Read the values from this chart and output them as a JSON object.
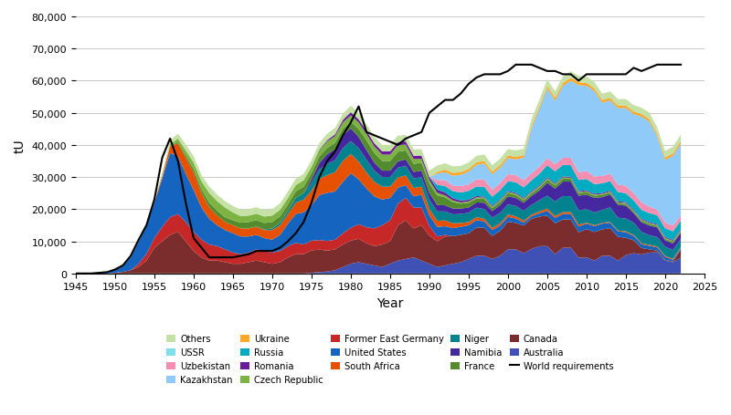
{
  "years": [
    1945,
    1946,
    1947,
    1948,
    1949,
    1950,
    1951,
    1952,
    1953,
    1954,
    1955,
    1956,
    1957,
    1958,
    1959,
    1960,
    1961,
    1962,
    1963,
    1964,
    1965,
    1966,
    1967,
    1968,
    1969,
    1970,
    1971,
    1972,
    1973,
    1974,
    1975,
    1976,
    1977,
    1978,
    1979,
    1980,
    1981,
    1982,
    1983,
    1984,
    1985,
    1986,
    1987,
    1988,
    1989,
    1990,
    1991,
    1992,
    1993,
    1994,
    1995,
    1996,
    1997,
    1998,
    1999,
    2000,
    2001,
    2002,
    2003,
    2004,
    2005,
    2006,
    2007,
    2008,
    2009,
    2010,
    2011,
    2012,
    2013,
    2014,
    2015,
    2016,
    2017,
    2018,
    2019,
    2020,
    2021,
    2022
  ],
  "series": {
    "Australia": [
      0,
      0,
      0,
      0,
      0,
      0,
      0,
      0,
      0,
      0,
      0,
      0,
      0,
      0,
      0,
      0,
      0,
      0,
      0,
      0,
      0,
      0,
      0,
      0,
      0,
      0,
      0,
      0,
      0,
      0,
      200,
      400,
      600,
      1000,
      2000,
      3000,
      3500,
      3000,
      2500,
      2000,
      3000,
      4000,
      4500,
      5000,
      4000,
      3000,
      2000,
      2500,
      3000,
      3500,
      4500,
      5500,
      5500,
      4500,
      5500,
      7500,
      7500,
      6300,
      7600,
      8500,
      8500,
      6000,
      8000,
      8000,
      4900,
      5000,
      4000,
      5500,
      5500,
      4000,
      5700,
      6300,
      5900,
      6500,
      6600,
      4000,
      3500,
      4900
    ],
    "Canada": [
      0,
      0,
      0,
      0,
      0,
      200,
      500,
      1000,
      2000,
      4000,
      8000,
      10000,
      12000,
      13000,
      10000,
      7000,
      5000,
      4000,
      4000,
      3500,
      3000,
      3000,
      3500,
      4000,
      3500,
      3000,
      3500,
      5000,
      6000,
      6000,
      7000,
      7000,
      6500,
      6500,
      7000,
      7200,
      7300,
      6400,
      6000,
      7000,
      7000,
      11000,
      12000,
      9000,
      11000,
      8800,
      8000,
      9000,
      8600,
      8500,
      8000,
      8800,
      8700,
      7200,
      7700,
      8600,
      8200,
      8600,
      9400,
      9200,
      9500,
      9600,
      8800,
      8800,
      7900,
      8800,
      8900,
      8200,
      8600,
      7400,
      5400,
      4000,
      2000,
      1000,
      500,
      200,
      200,
      2500
    ],
    "Former_East_Germany": [
      0,
      0,
      0,
      0,
      0,
      0,
      0,
      0,
      1000,
      2000,
      3000,
      4500,
      5500,
      5500,
      6000,
      6000,
      5500,
      5000,
      4500,
      4000,
      3500,
      3000,
      3000,
      3500,
      3500,
      3500,
      3500,
      3500,
      3500,
      3000,
      3000,
      3000,
      3000,
      3000,
      3500,
      4000,
      4500,
      5000,
      5500,
      6000,
      6500,
      6700,
      7000,
      6500,
      5500,
      3000,
      1500,
      500,
      0,
      0,
      0,
      0,
      0,
      0,
      0,
      0,
      0,
      0,
      0,
      0,
      0,
      0,
      0,
      0,
      0,
      0,
      0,
      0,
      0,
      0,
      0,
      0,
      0,
      0,
      0,
      0,
      0
    ],
    "South_Africa": [
      0,
      0,
      0,
      0,
      0,
      0,
      0,
      0,
      0,
      0,
      400,
      800,
      2000,
      4000,
      5000,
      5500,
      4500,
      3500,
      3000,
      2500,
      2500,
      2500,
      2500,
      2500,
      2500,
      3000,
      3000,
      3000,
      3500,
      4000,
      4500,
      5000,
      5500,
      6000,
      6500,
      6000,
      5500,
      5000,
      4500,
      4000,
      3500,
      3200,
      3000,
      2600,
      2500,
      2000,
      1900,
      1800,
      1500,
      1200,
      1000,
      900,
      800,
      700,
      700,
      700,
      700,
      600,
      500,
      600,
      700,
      600,
      600,
      600,
      600,
      300,
      300,
      250,
      250,
      250,
      300,
      300,
      300,
      300,
      300,
      300,
      300,
      300
    ],
    "United_States": [
      0,
      0,
      0,
      200,
      500,
      1000,
      2000,
      4000,
      7000,
      9000,
      11000,
      15000,
      20000,
      18000,
      15000,
      13000,
      10000,
      8000,
      6500,
      6000,
      6000,
      5500,
      5000,
      4500,
      4000,
      4000,
      5000,
      7000,
      9000,
      10000,
      11000,
      14000,
      15000,
      15000,
      16000,
      17000,
      14000,
      12000,
      10000,
      8000,
      7000,
      5000,
      4000,
      3500,
      4000,
      3200,
      3000,
      2700,
      2500,
      2500,
      2500,
      2300,
      2000,
      1800,
      1700,
      1500,
      1400,
      900,
      800,
      1000,
      1500,
      1700,
      1700,
      1700,
      1800,
      1700,
      1800,
      1800,
      1700,
      1700,
      1700,
      1400,
      1200,
      1100,
      1000,
      1000,
      500,
      500,
      500
    ],
    "Niger": [
      0,
      0,
      0,
      0,
      0,
      0,
      0,
      0,
      0,
      0,
      0,
      0,
      0,
      0,
      0,
      0,
      0,
      0,
      0,
      0,
      0,
      0,
      0,
      100,
      200,
      500,
      800,
      1000,
      1500,
      2000,
      2500,
      3000,
      3500,
      3700,
      4000,
      4000,
      4200,
      4000,
      3500,
      3000,
      3000,
      3000,
      3000,
      3000,
      3000,
      3000,
      2900,
      2800,
      2800,
      2800,
      2900,
      3000,
      3000,
      3200,
      3200,
      3200,
      3200,
      3100,
      3000,
      3500,
      4000,
      4500,
      5000,
      4900,
      4500,
      4200,
      4000,
      4000,
      4500,
      4000,
      4000,
      3800,
      3500,
      3000,
      2900,
      2800,
      2800,
      2500
    ],
    "Namibia": [
      0,
      0,
      0,
      0,
      0,
      0,
      0,
      0,
      0,
      0,
      0,
      0,
      0,
      0,
      0,
      0,
      0,
      0,
      0,
      0,
      0,
      0,
      0,
      0,
      0,
      0,
      0,
      0,
      0,
      0,
      1000,
      2000,
      3000,
      3500,
      4000,
      4000,
      3500,
      3000,
      2500,
      2000,
      2000,
      2000,
      2000,
      2000,
      2000,
      2000,
      2000,
      1900,
      1800,
      1700,
      1600,
      1600,
      2000,
      2000,
      2500,
      2500,
      2500,
      2500,
      2800,
      3000,
      4000,
      4000,
      4500,
      4600,
      4500,
      4500,
      4500,
      4000,
      4000,
      4000,
      4000,
      3000,
      3000,
      3000,
      3000,
      2000,
      2000,
      2000
    ],
    "France": [
      0,
      0,
      0,
      0,
      0,
      0,
      0,
      0,
      0,
      0,
      0,
      0,
      200,
      500,
      800,
      1000,
      1200,
      1500,
      1500,
      1500,
      1500,
      1800,
      2000,
      2000,
      2000,
      2000,
      2000,
      2000,
      2000,
      2000,
      2000,
      2000,
      2000,
      2000,
      2000,
      2000,
      2500,
      3000,
      3000,
      3000,
      3000,
      3000,
      2800,
      2500,
      2500,
      3000,
      3000,
      2500,
      2000,
      1500,
      1500,
      1200,
      1200,
      1000,
      1000,
      1000,
      900,
      800,
      800,
      900,
      1000,
      1000,
      900,
      900,
      800,
      800,
      700,
      700,
      600,
      500,
      500,
      500,
      500,
      500,
      500,
      500,
      500
    ],
    "Czech_Republic": [
      0,
      0,
      0,
      0,
      0,
      0,
      0,
      0,
      0,
      0,
      0,
      0,
      500,
      1000,
      1500,
      2000,
      2500,
      3000,
      3000,
      3000,
      2500,
      2000,
      2000,
      2000,
      2000,
      2000,
      2000,
      2000,
      2000,
      2000,
      2000,
      2000,
      2000,
      2000,
      2000,
      2000,
      2000,
      2000,
      2000,
      2000,
      2000,
      2000,
      1800,
      1500,
      1200,
      1000,
      800,
      600,
      500,
      400,
      400,
      400,
      400,
      400,
      400,
      400,
      400,
      400,
      400,
      400,
      400,
      400,
      400,
      300,
      300,
      300,
      300,
      300,
      300,
      300,
      300,
      300,
      300,
      300,
      300,
      300
    ],
    "Romania": [
      0,
      0,
      0,
      0,
      0,
      0,
      0,
      0,
      0,
      0,
      0,
      0,
      0,
      0,
      0,
      0,
      0,
      0,
      0,
      0,
      0,
      0,
      0,
      0,
      0,
      0,
      0,
      0,
      0,
      0,
      0,
      200,
      400,
      600,
      800,
      1000,
      1000,
      1000,
      1000,
      1000,
      1000,
      1000,
      1000,
      1000,
      1000,
      1000,
      1000,
      900,
      700,
      600,
      500,
      400,
      300,
      300,
      300,
      300,
      300,
      300,
      300,
      300,
      300,
      300,
      300,
      300,
      300,
      300,
      300,
      300,
      300,
      300,
      300,
      300,
      300,
      300,
      300,
      300,
      300
    ],
    "Russia": [
      0,
      0,
      0,
      0,
      0,
      0,
      0,
      0,
      0,
      0,
      0,
      0,
      0,
      0,
      0,
      0,
      0,
      0,
      0,
      0,
      0,
      0,
      0,
      0,
      0,
      0,
      0,
      0,
      0,
      0,
      0,
      0,
      0,
      0,
      0,
      0,
      0,
      0,
      0,
      0,
      0,
      0,
      0,
      0,
      0,
      0,
      1500,
      2000,
      2200,
      2500,
      2800,
      3000,
      3000,
      2800,
      2900,
      3000,
      3300,
      3300,
      3400,
      3600,
      3800,
      3700,
      3600,
      3600,
      3500,
      3500,
      3000,
      3000,
      3000,
      2900,
      2800,
      2800,
      2800,
      2800,
      2700,
      2700,
      2700,
      2700
    ],
    "Uzbekistan": [
      0,
      0,
      0,
      0,
      0,
      0,
      0,
      0,
      0,
      0,
      0,
      0,
      0,
      0,
      0,
      0,
      0,
      0,
      0,
      0,
      0,
      0,
      0,
      0,
      0,
      0,
      0,
      0,
      0,
      0,
      0,
      0,
      0,
      0,
      0,
      0,
      0,
      0,
      0,
      0,
      0,
      0,
      0,
      0,
      0,
      0,
      1500,
      1800,
      1800,
      2000,
      2000,
      2200,
      2300,
      2200,
      2200,
      2200,
      2200,
      2200,
      2200,
      2200,
      2200,
      2200,
      2200,
      2300,
      2400,
      2500,
      2400,
      2300,
      2300,
      2300,
      2300,
      2300,
      2300,
      2000,
      1700,
      1800,
      1800,
      1500
    ],
    "Kazakhstan": [
      0,
      0,
      0,
      0,
      0,
      0,
      0,
      0,
      0,
      0,
      0,
      0,
      0,
      0,
      0,
      0,
      0,
      0,
      0,
      0,
      0,
      0,
      0,
      0,
      0,
      0,
      0,
      0,
      0,
      0,
      0,
      0,
      0,
      0,
      0,
      0,
      0,
      0,
      0,
      0,
      0,
      0,
      0,
      0,
      0,
      0,
      2000,
      2500,
      3000,
      3500,
      4000,
      4500,
      5000,
      4800,
      4800,
      5000,
      4900,
      7000,
      14000,
      18000,
      21700,
      19800,
      22400,
      24000,
      27100,
      26500,
      26600,
      22800,
      22800,
      23800,
      24200,
      24600,
      26700,
      26500,
      22800,
      19400,
      21700,
      22400
    ],
    "Ukraine": [
      0,
      0,
      0,
      0,
      0,
      0,
      0,
      0,
      0,
      0,
      0,
      0,
      0,
      0,
      0,
      0,
      0,
      0,
      0,
      0,
      0,
      0,
      0,
      0,
      0,
      0,
      0,
      0,
      0,
      0,
      0,
      0,
      0,
      0,
      0,
      0,
      0,
      0,
      0,
      0,
      0,
      0,
      0,
      0,
      0,
      0,
      500,
      800,
      900,
      800,
      800,
      800,
      800,
      800,
      800,
      800,
      800,
      800,
      800,
      800,
      800,
      900,
      900,
      900,
      900,
      900,
      800,
      800,
      800,
      800,
      800,
      800,
      800,
      800,
      800,
      800,
      800,
      800
    ],
    "USSR": [
      0,
      0,
      0,
      0,
      0,
      0,
      0,
      0,
      0,
      0,
      0,
      0,
      0,
      0,
      0,
      0,
      0,
      0,
      0,
      0,
      0,
      0,
      0,
      0,
      0,
      0,
      0,
      0,
      0,
      0,
      0,
      0,
      0,
      0,
      0,
      0,
      0,
      0,
      0,
      0,
      0,
      0,
      0,
      0,
      0,
      0,
      0,
      0,
      0,
      0,
      0,
      0,
      0,
      0,
      0,
      0,
      0,
      0,
      0,
      0,
      0,
      0,
      0,
      0,
      0,
      0,
      0,
      0,
      0,
      0,
      0,
      0,
      0,
      0,
      0,
      0,
      0,
      0
    ],
    "Others": [
      0,
      0,
      100,
      200,
      300,
      400,
      500,
      600,
      700,
      800,
      900,
      1000,
      1200,
      1500,
      1800,
      2000,
      2000,
      2000,
      2000,
      2000,
      2000,
      2000,
      2000,
      2000,
      2000,
      2000,
      2000,
      2000,
      2000,
      2000,
      2000,
      2000,
      2000,
      2000,
      2000,
      2000,
      2000,
      2000,
      2000,
      2000,
      2000,
      2000,
      2000,
      2000,
      2000,
      2000,
      2000,
      2000,
      2000,
      2000,
      2000,
      2000,
      2000,
      2000,
      2000,
      2000,
      2000,
      2000,
      2000,
      2000,
      2000,
      2000,
      2000,
      2000,
      2000,
      2000,
      2000,
      2000,
      2000,
      2000,
      2000,
      2000,
      2000,
      2000,
      2000,
      2000,
      2000,
      2000
    ]
  },
  "world_requirements": [
    0,
    0,
    0,
    200,
    400,
    1200,
    2500,
    5500,
    10500,
    15000,
    23000,
    36000,
    42000,
    35000,
    22000,
    11000,
    8000,
    5000,
    5000,
    5000,
    5000,
    5500,
    6000,
    7000,
    7000,
    7000,
    8000,
    10000,
    12500,
    16000,
    22000,
    30000,
    35000,
    38000,
    43000,
    47000,
    52000,
    44000,
    43000,
    42000,
    41000,
    40000,
    42000,
    43000,
    44000,
    50000,
    52000,
    54000,
    54000,
    56000,
    59000,
    61000,
    62000,
    62000,
    62000,
    63000,
    65000,
    65000,
    65000,
    64000,
    63000,
    63000,
    62000,
    62000,
    60000,
    62000,
    62000,
    62000,
    62000,
    62000,
    62000,
    64000,
    63000,
    64000,
    65000,
    65000,
    65000,
    65000
  ],
  "colors": {
    "Australia": "#3F51B5",
    "Canada": "#7B2D2D",
    "Former_East_Germany": "#C62828",
    "South_Africa": "#E65100",
    "United_States": "#1565C0",
    "Niger": "#00838F",
    "Namibia": "#4527A0",
    "France": "#558B2F",
    "Czech_Republic": "#7CB342",
    "Romania": "#6A1B9A",
    "Russia": "#00ACC1",
    "Uzbekistan": "#F48FB1",
    "Kazakhstan": "#90CAF9",
    "Ukraine": "#FFA726",
    "USSR": "#80DEEA",
    "Others": "#C5E1A5"
  },
  "display_labels": {
    "Australia": "Australia",
    "Canada": "Canada",
    "Former_East_Germany": "Former East Germany",
    "South_Africa": "South Africa",
    "United_States": "United States",
    "Niger": "Niger",
    "Namibia": "Namibia",
    "France": "France",
    "Czech_Republic": "Czech Republic",
    "Romania": "Romania",
    "Russia": "Russia",
    "Uzbekistan": "Uzbekistan",
    "Kazakhstan": "Kazakhstan",
    "Ukraine": "Ukraine",
    "USSR": "USSR",
    "Others": "Others"
  },
  "stack_order": [
    "Australia",
    "Canada",
    "Former_East_Germany",
    "United_States",
    "South_Africa",
    "Niger",
    "Namibia",
    "France",
    "Czech_Republic",
    "Romania",
    "Russia",
    "Uzbekistan",
    "Kazakhstan",
    "Ukraine",
    "USSR",
    "Others"
  ],
  "legend_order": [
    "Others",
    "USSR",
    "Uzbekistan",
    "Kazakhstan",
    "Ukraine",
    "Russia",
    "Romania",
    "Czech_Republic",
    "Former_East_Germany",
    "United_States",
    "South_Africa",
    "Niger",
    "Namibia",
    "France",
    "Canada",
    "Australia"
  ],
  "ylabel": "tU",
  "xlabel": "Year",
  "ylim": [
    0,
    80000
  ],
  "yticks": [
    0,
    10000,
    20000,
    30000,
    40000,
    50000,
    60000,
    70000,
    80000
  ],
  "xlim": [
    1945,
    2025
  ],
  "xticks": [
    1945,
    1950,
    1955,
    1960,
    1965,
    1970,
    1975,
    1980,
    1985,
    1990,
    1995,
    2000,
    2005,
    2010,
    2015,
    2020,
    2025
  ]
}
